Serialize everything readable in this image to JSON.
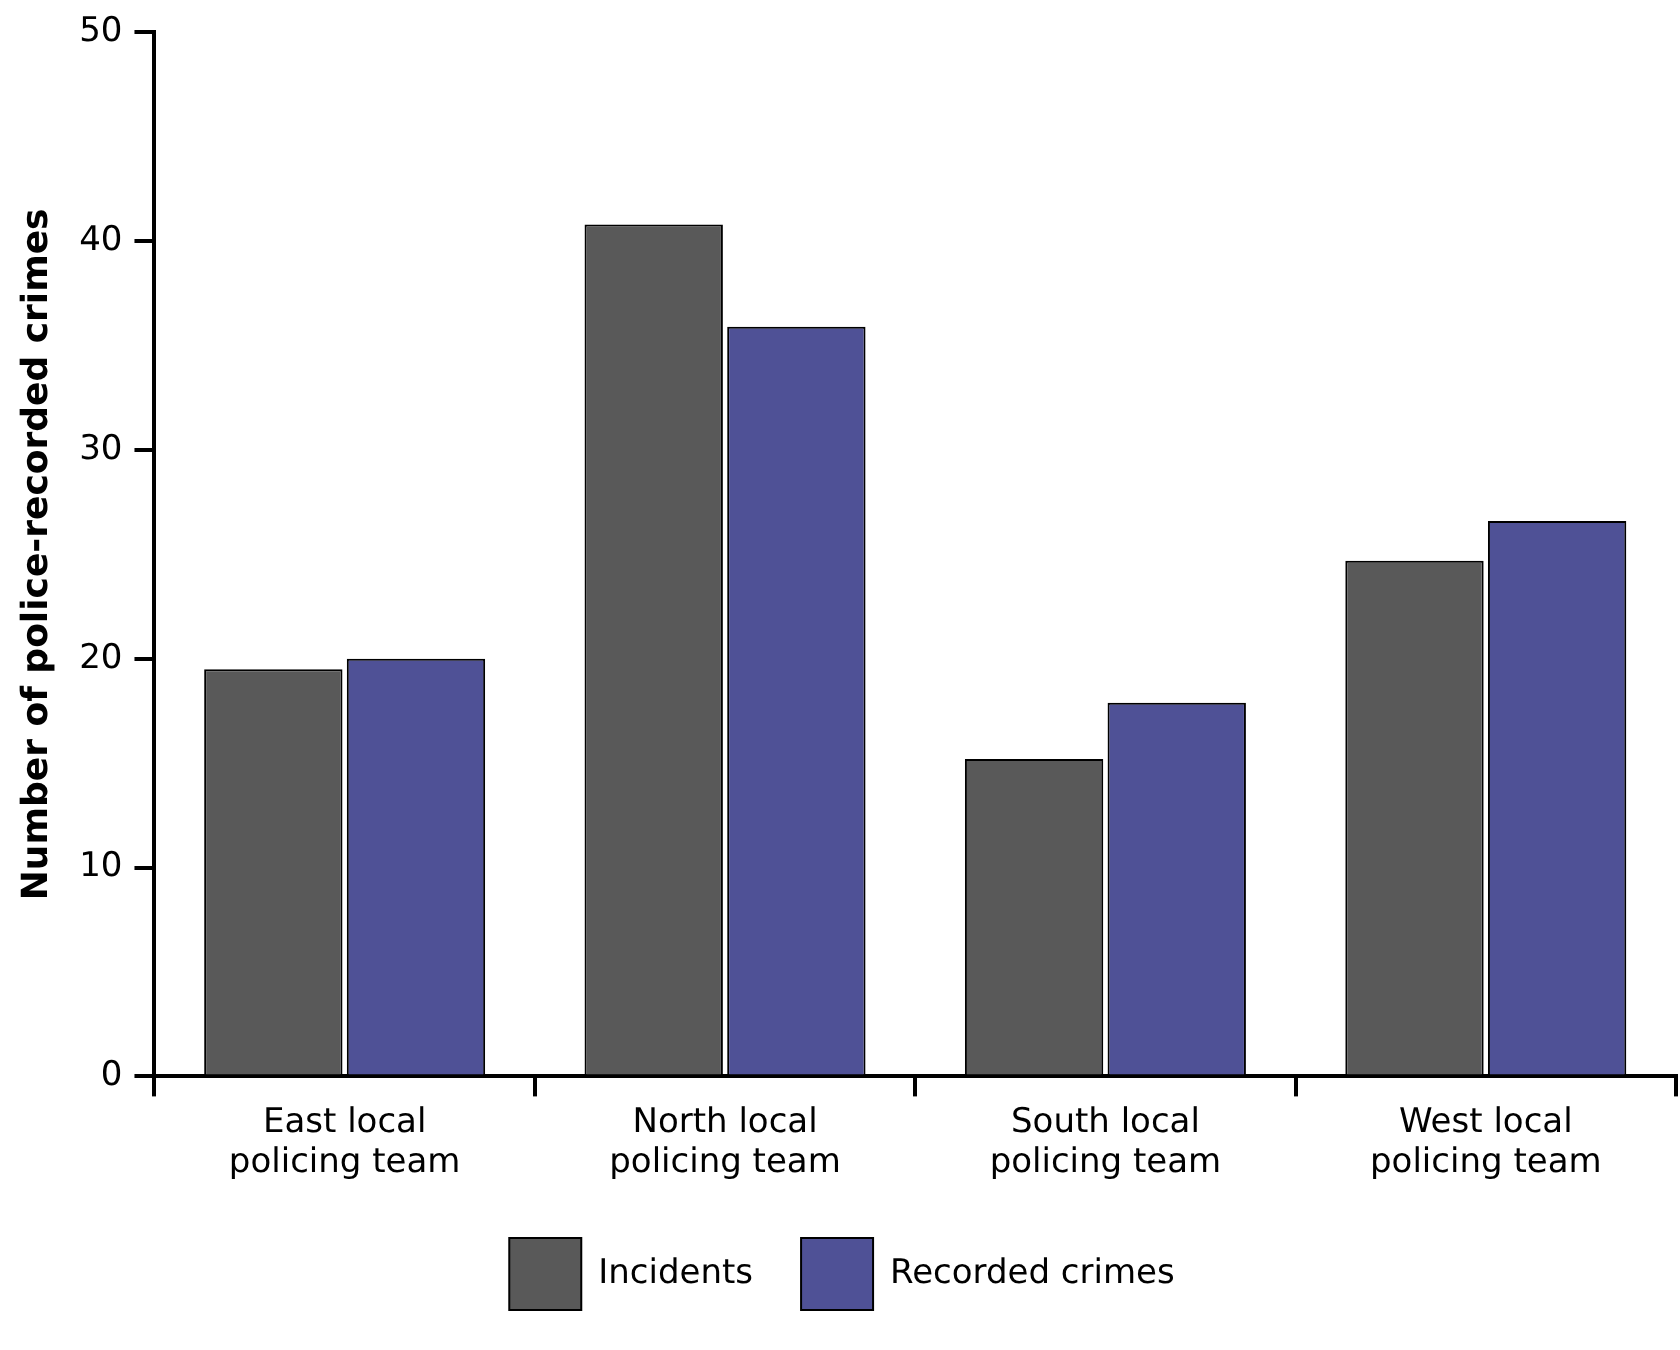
{
  "chart_data": {
    "type": "bar",
    "ylabel": "Number of police-recorded crimes",
    "categories": [
      "East local policing team",
      "North local policing team",
      "South local policing team",
      "West local policing team"
    ],
    "series": [
      {
        "name": "Incidents",
        "color": "#595959",
        "values": [
          19.5,
          40.8,
          15.2,
          24.7
        ]
      },
      {
        "name": "Recorded crimes",
        "color": "#4f5196",
        "values": [
          20.0,
          35.9,
          17.9,
          26.6
        ]
      }
    ],
    "ylim": [
      0,
      50
    ],
    "yticks": [
      0,
      10,
      20,
      30,
      40,
      50
    ],
    "grid": false,
    "legend": "bottom"
  }
}
